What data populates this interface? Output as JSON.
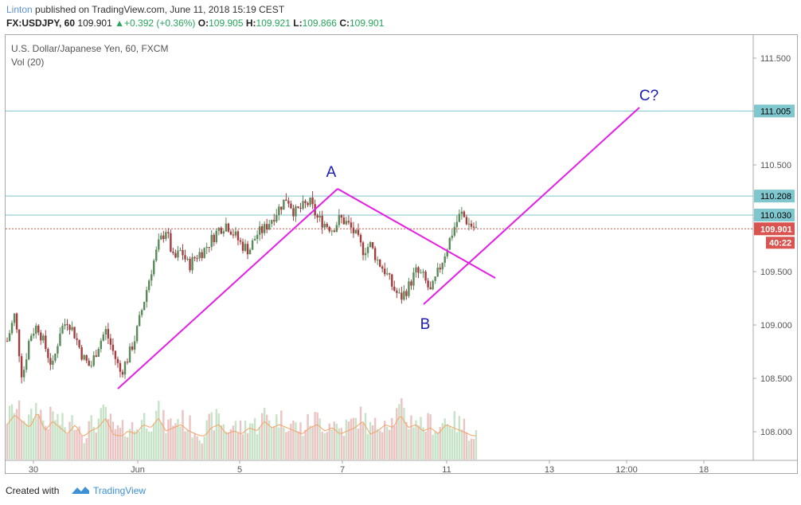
{
  "header": {
    "author": "Linton",
    "published": "published on TradingView.com, June 11, 2018 15:19 CEST",
    "symbol": "FX:USDJPY, 60",
    "last": "109.901",
    "change": "+0.392 (+0.36%)",
    "open_label": "O:",
    "open": "109.905",
    "high_label": "H:",
    "high": "109.921",
    "low_label": "L:",
    "low": "109.866",
    "close_label": "C:",
    "close": "109.901"
  },
  "legend": {
    "title": "U.S. Dollar/Japanese Yen, 60, FXCM",
    "volume": "Vol (20)"
  },
  "footer": {
    "created_with": "Created with",
    "brand": "TradingView"
  },
  "colors": {
    "up": "#5a8a5a",
    "down": "#a33d3d",
    "level_line": "#7fc6cf",
    "trend_line": "#e51ee5",
    "last_price": "#d9534f",
    "label_text": "#1a1ab8"
  },
  "chart_data": {
    "type": "candlestick",
    "ylim": [
      107.8,
      111.6
    ],
    "y_ticks": [
      "111.500",
      "111.000",
      "110.500",
      "110.000",
      "109.500",
      "109.000",
      "108.500",
      "108.000"
    ],
    "x_ticks": [
      "30",
      "Jun",
      "5",
      "7",
      "11",
      "13",
      "12:00",
      "18"
    ],
    "price_levels": [
      {
        "value": 111.005,
        "label": "111.005"
      },
      {
        "value": 110.208,
        "label": "110.208"
      },
      {
        "value": 110.03,
        "label": "110.030"
      }
    ],
    "last_price": {
      "value": 109.901,
      "label": "109.901",
      "countdown": "40:22"
    },
    "annotations": [
      {
        "text": "A",
        "x": "Jun 7",
        "y": 110.3
      },
      {
        "text": "B",
        "x": "Jun 10",
        "y": 109.0
      },
      {
        "text": "C?",
        "x": "Jun 12 12:00",
        "y": 111.15
      }
    ],
    "trend_lines": [
      {
        "from": [
          108.4,
          "May 31"
        ],
        "to": [
          110.2,
          "Jun 6"
        ]
      },
      {
        "from": [
          110.21,
          "Jun 6"
        ],
        "to": [
          109.44,
          "Jun 11"
        ]
      },
      {
        "from": [
          109.2,
          "Jun 10"
        ],
        "to": [
          111.04,
          "Jun 12"
        ]
      }
    ],
    "close_path": [
      108.85,
      109.1,
      108.5,
      108.9,
      109.0,
      108.8,
      108.6,
      108.95,
      109.05,
      108.9,
      108.7,
      108.6,
      108.8,
      108.95,
      108.75,
      108.55,
      108.7,
      108.9,
      109.2,
      109.5,
      109.75,
      109.9,
      109.6,
      109.7,
      109.55,
      109.65,
      109.7,
      109.8,
      109.9,
      109.95,
      109.85,
      109.75,
      109.7,
      109.85,
      109.9,
      110.0,
      110.1,
      110.2,
      110.05,
      110.1,
      110.15,
      110.0,
      109.95,
      109.9,
      110.0,
      109.95,
      109.85,
      109.7,
      109.75,
      109.6,
      109.5,
      109.35,
      109.25,
      109.35,
      109.5,
      109.45,
      109.3,
      109.5,
      109.7,
      109.9,
      110.05,
      109.95,
      109.9
    ],
    "volume_path": [
      0.55,
      0.7,
      0.6,
      0.5,
      0.75,
      0.45,
      0.6,
      0.5,
      0.4,
      0.55,
      0.35,
      0.45,
      0.5,
      0.65,
      0.4,
      0.35,
      0.45,
      0.4,
      0.55,
      0.5,
      0.65,
      0.45,
      0.5,
      0.55,
      0.45,
      0.4,
      0.35,
      0.5,
      0.55,
      0.4,
      0.45,
      0.4,
      0.5,
      0.45,
      0.6,
      0.5,
      0.55,
      0.5,
      0.45,
      0.4,
      0.5,
      0.55,
      0.45,
      0.5,
      0.4,
      0.45,
      0.5,
      0.6,
      0.4,
      0.45,
      0.55,
      0.5,
      0.7,
      0.5,
      0.55,
      0.45,
      0.5,
      0.4,
      0.55,
      0.5,
      0.45,
      0.4,
      0.35
    ]
  }
}
